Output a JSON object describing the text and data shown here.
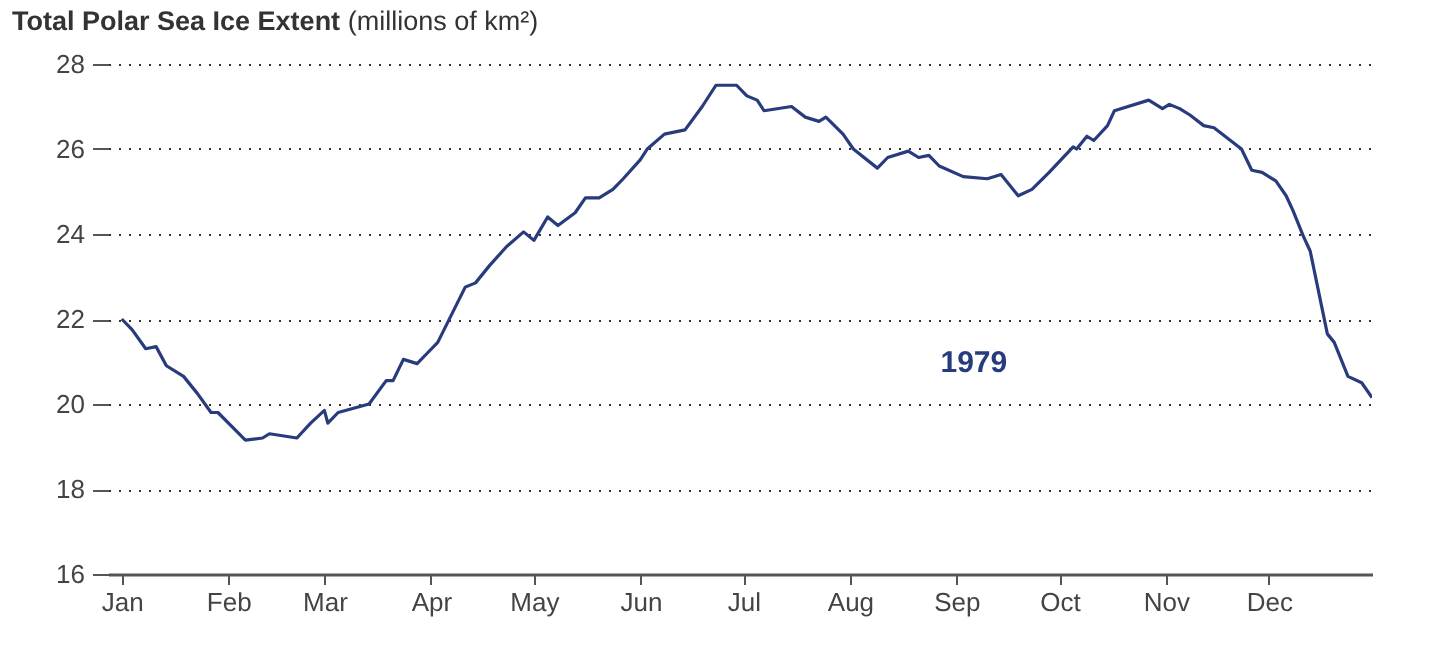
{
  "chart_data": {
    "type": "line",
    "title": "Total Polar Sea Ice Extent",
    "ylabel": "(millions of km²)",
    "x": [
      "1979-01-01",
      "1979-01-04",
      "1979-01-08",
      "1979-01-11",
      "1979-01-14",
      "1979-01-19",
      "1979-01-23",
      "1979-01-27",
      "1979-01-29",
      "1979-02-06",
      "1979-02-11",
      "1979-02-13",
      "1979-02-21",
      "1979-02-25",
      "1979-03-01",
      "1979-03-02",
      "1979-03-05",
      "1979-03-14",
      "1979-03-19",
      "1979-03-21",
      "1979-03-24",
      "1979-03-28",
      "1979-03-31",
      "1979-04-03",
      "1979-04-11",
      "1979-04-14",
      "1979-04-18",
      "1979-04-23",
      "1979-04-28",
      "1979-05-01",
      "1979-05-05",
      "1979-05-08",
      "1979-05-13",
      "1979-05-16",
      "1979-05-20",
      "1979-05-24",
      "1979-05-27",
      "1979-06-01",
      "1979-06-03",
      "1979-06-08",
      "1979-06-14",
      "1979-06-19",
      "1979-06-23",
      "1979-06-29",
      "1979-07-02",
      "1979-07-05",
      "1979-07-07",
      "1979-07-15",
      "1979-07-19",
      "1979-07-23",
      "1979-07-25",
      "1979-07-30",
      "1979-08-02",
      "1979-08-09",
      "1979-08-12",
      "1979-08-18",
      "1979-08-21",
      "1979-08-24",
      "1979-08-27",
      "1979-09-03",
      "1979-09-10",
      "1979-09-14",
      "1979-09-19",
      "1979-09-23",
      "1979-09-28",
      "1979-10-05",
      "1979-10-06",
      "1979-10-09",
      "1979-10-11",
      "1979-10-15",
      "1979-10-17",
      "1979-10-27",
      "1979-10-31",
      "1979-11-02",
      "1979-11-05",
      "1979-11-08",
      "1979-11-12",
      "1979-11-15",
      "1979-11-23",
      "1979-11-26",
      "1979-11-29",
      "1979-12-03",
      "1979-12-06",
      "1979-12-08",
      "1979-12-11",
      "1979-12-13",
      "1979-12-18",
      "1979-12-20",
      "1979-12-24",
      "1979-12-28",
      "1979-12-31"
    ],
    "series": [
      {
        "name": "1979",
        "color": "#283b7c",
        "values": [
          22.0,
          21.75,
          21.3,
          21.35,
          20.9,
          20.65,
          20.25,
          19.8,
          19.8,
          19.15,
          19.2,
          19.3,
          19.2,
          19.55,
          19.85,
          19.55,
          19.8,
          20.0,
          20.55,
          20.55,
          21.05,
          20.95,
          21.2,
          21.45,
          22.75,
          22.85,
          23.25,
          23.7,
          24.05,
          23.85,
          24.4,
          24.2,
          24.5,
          24.85,
          24.85,
          25.05,
          25.3,
          25.75,
          26.0,
          26.35,
          26.45,
          27.0,
          27.5,
          27.5,
          27.25,
          27.15,
          26.9,
          27.0,
          26.75,
          26.65,
          26.75,
          26.35,
          26.0,
          25.55,
          25.8,
          25.95,
          25.8,
          25.85,
          25.6,
          25.35,
          25.3,
          25.4,
          24.9,
          25.05,
          25.45,
          26.05,
          26.0,
          26.3,
          26.2,
          26.55,
          26.9,
          27.15,
          26.95,
          27.05,
          26.95,
          26.8,
          26.55,
          26.5,
          26.0,
          25.5,
          25.45,
          25.25,
          24.9,
          24.55,
          23.95,
          23.6,
          21.65,
          21.45,
          20.65,
          20.5,
          20.15
        ]
      }
    ],
    "xlim": [
      "1978-12-28",
      "1979-12-31"
    ],
    "xticks": [
      {
        "value": "1979-01-01",
        "label": "Jan"
      },
      {
        "value": "1979-02-01",
        "label": "Feb"
      },
      {
        "value": "1979-03-01",
        "label": "Mar"
      },
      {
        "value": "1979-04-01",
        "label": "Apr"
      },
      {
        "value": "1979-05-01",
        "label": "May"
      },
      {
        "value": "1979-06-01",
        "label": "Jun"
      },
      {
        "value": "1979-07-01",
        "label": "Jul"
      },
      {
        "value": "1979-08-01",
        "label": "Aug"
      },
      {
        "value": "1979-09-01",
        "label": "Sep"
      },
      {
        "value": "1979-10-01",
        "label": "Oct"
      },
      {
        "value": "1979-11-01",
        "label": "Nov"
      },
      {
        "value": "1979-12-01",
        "label": "Dec"
      }
    ],
    "ylim": [
      16,
      28
    ],
    "yticks": [
      16,
      18,
      20,
      22,
      24,
      26,
      28
    ],
    "grid": "y",
    "marker": "none",
    "line_style": "solid"
  }
}
